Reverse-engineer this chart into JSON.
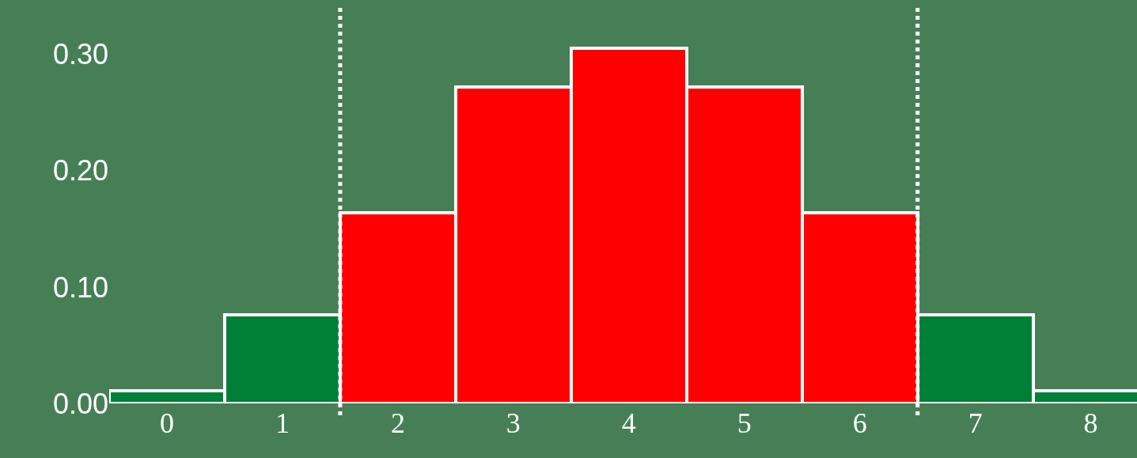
{
  "chart_data": {
    "type": "bar",
    "x": [
      0,
      1,
      2,
      3,
      4,
      5,
      6,
      7,
      8
    ],
    "values": [
      0.011,
      0.076,
      0.164,
      0.272,
      0.305,
      0.272,
      0.164,
      0.076,
      0.011
    ],
    "colors": [
      "#008037",
      "#008037",
      "#ff0000",
      "#ff0000",
      "#ff0000",
      "#ff0000",
      "#ff0000",
      "#008037",
      "#008037"
    ],
    "xlim": [
      -0.5,
      8.4
    ],
    "xticks": [
      0,
      1,
      2,
      3,
      4,
      5,
      6,
      7,
      8
    ],
    "ylim": [
      0,
      0.34
    ],
    "yticks": [
      {
        "value": 0,
        "label": "0.00"
      },
      {
        "value": 0.1,
        "label": "0.10"
      },
      {
        "value": 0.2,
        "label": "0.20"
      },
      {
        "value": 0.3,
        "label": "0.30"
      }
    ],
    "ref_lines": [
      {
        "axis": "x",
        "value": 1.5,
        "color": "#ffffff",
        "line_style": "dotted"
      },
      {
        "axis": "x",
        "value": 6.5,
        "color": "#ffffff",
        "line_style": "dotted"
      }
    ],
    "grid": false
  }
}
